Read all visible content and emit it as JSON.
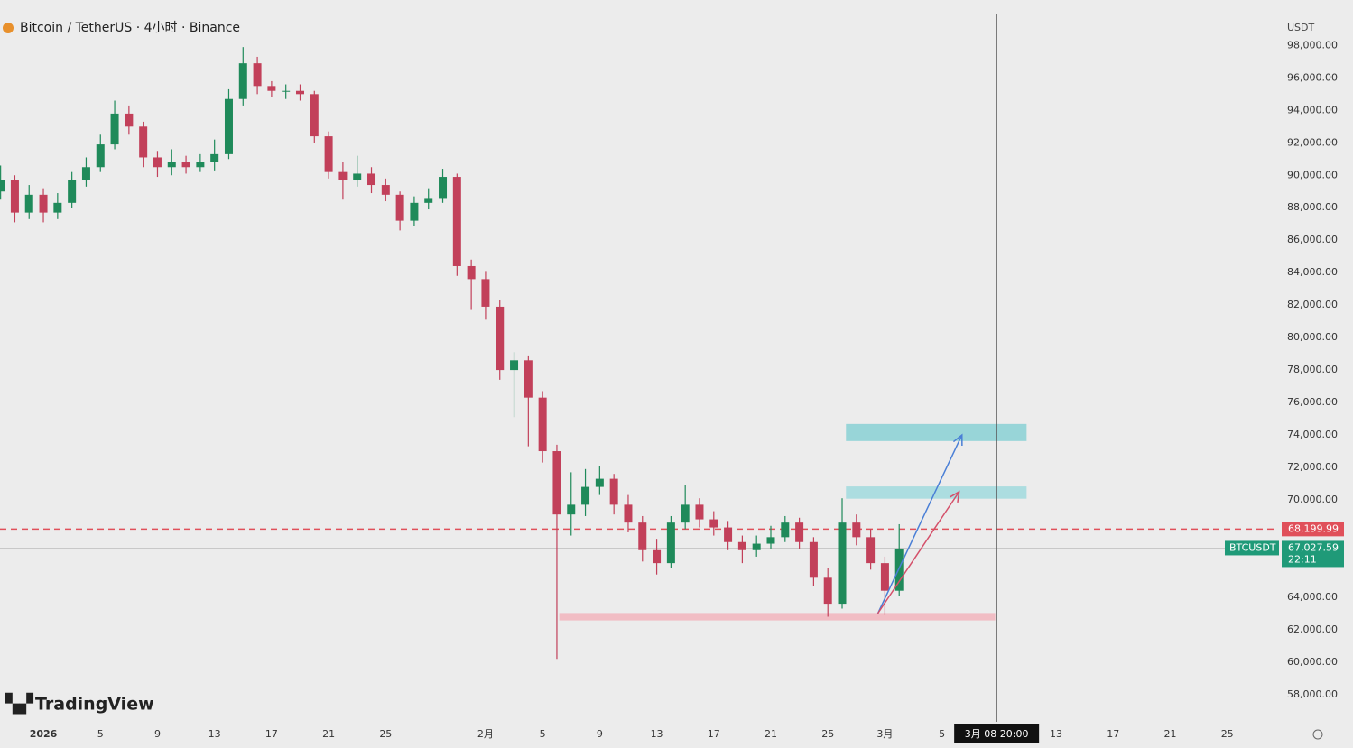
{
  "chart_data": {
    "type": "candlestick",
    "title": "Bitcoin / TetherUS · 4小时 · Binance",
    "currency": "USDT",
    "brand": "TradingView",
    "up_color": "#1f8a5a",
    "down_color": "#c2405a",
    "x": [
      -3,
      -2,
      -1,
      0,
      1,
      2,
      3,
      4,
      5,
      6,
      7,
      8,
      9,
      10,
      11,
      12,
      13,
      14,
      15,
      16,
      17,
      18,
      19,
      20,
      21,
      22,
      23,
      24,
      25,
      26,
      27,
      28,
      29,
      30,
      31,
      32,
      33,
      34,
      35,
      36,
      37,
      38,
      39,
      40,
      41,
      42,
      43,
      44,
      45,
      46,
      47,
      48,
      49,
      50,
      51,
      52,
      53,
      54,
      55,
      56,
      57,
      58,
      59,
      60
    ],
    "open": [
      89000,
      89700,
      87700,
      88800,
      87700,
      88300,
      89700,
      90500,
      91900,
      93800,
      93000,
      91100,
      90500,
      90800,
      90500,
      90800,
      91300,
      94700,
      96900,
      95500,
      95200,
      95200,
      95000,
      92400,
      90200,
      89700,
      90100,
      89400,
      88800,
      87200,
      88300,
      88600,
      89900,
      84400,
      83600,
      81900,
      78000,
      78600,
      76300,
      73000,
      69100,
      69700,
      70800,
      71300,
      69700,
      68600,
      66900,
      66100,
      68600,
      69700,
      68800,
      68300,
      67400,
      66900,
      67300,
      67700,
      68600,
      67400,
      65200,
      63600,
      68600,
      67700,
      66100,
      64400
    ],
    "high": [
      90600,
      90000,
      89400,
      89200,
      88900,
      90200,
      91100,
      92500,
      94600,
      94300,
      93300,
      91500,
      91600,
      91200,
      91300,
      92200,
      95300,
      97900,
      97300,
      95800,
      95600,
      95600,
      95200,
      92700,
      90800,
      91200,
      90500,
      89800,
      89000,
      88700,
      89200,
      90400,
      90100,
      84800,
      84100,
      82300,
      79100,
      78900,
      76700,
      73400,
      71700,
      71900,
      72100,
      71600,
      70300,
      69000,
      67600,
      69000,
      70900,
      70100,
      69300,
      68700,
      67800,
      67800,
      68400,
      69000,
      68900,
      67700,
      65800,
      70100,
      69100,
      68200,
      66500,
      68500
    ],
    "low": [
      88500,
      87100,
      87300,
      87100,
      87300,
      88000,
      89300,
      90200,
      91600,
      92500,
      90500,
      89900,
      90000,
      90100,
      90200,
      90300,
      91000,
      94300,
      95000,
      94800,
      94700,
      94600,
      92000,
      89800,
      88500,
      89300,
      88900,
      88400,
      86600,
      86900,
      87900,
      88300,
      83800,
      81700,
      81100,
      77400,
      75100,
      73300,
      72300,
      60200,
      67800,
      69000,
      70300,
      69100,
      68000,
      66200,
      65400,
      65800,
      68200,
      68300,
      67800,
      66900,
      66100,
      66500,
      67000,
      67400,
      67000,
      64700,
      62800,
      63300,
      67200,
      65700,
      62900,
      64100
    ],
    "close": [
      89700,
      87700,
      88800,
      87700,
      88300,
      89700,
      90500,
      91900,
      93800,
      93000,
      91100,
      90500,
      90800,
      90500,
      90800,
      91300,
      94700,
      96900,
      95500,
      95200,
      95200,
      95000,
      92400,
      90200,
      89700,
      90100,
      89400,
      88800,
      87200,
      88300,
      88600,
      89900,
      84400,
      83600,
      81900,
      78000,
      78600,
      76300,
      73000,
      69100,
      69700,
      70800,
      71300,
      69700,
      68600,
      66900,
      66100,
      68600,
      69700,
      68800,
      68300,
      67400,
      66900,
      67300,
      67700,
      68600,
      67400,
      65200,
      63600,
      68600,
      67700,
      66100,
      64400,
      67000
    ],
    "xlim": [
      -3.04,
      86.5
    ],
    "ylim": [
      56600,
      100800
    ],
    "xticks": [
      {
        "value": 0,
        "label": "2026"
      },
      {
        "value": 4,
        "label": "5"
      },
      {
        "value": 8,
        "label": "9"
      },
      {
        "value": 12,
        "label": "13"
      },
      {
        "value": 16,
        "label": "17"
      },
      {
        "value": 20,
        "label": "21"
      },
      {
        "value": 24,
        "label": "25"
      },
      {
        "value": 31,
        "label": "2月"
      },
      {
        "value": 35,
        "label": "5"
      },
      {
        "value": 39,
        "label": "9"
      },
      {
        "value": 43,
        "label": "13"
      },
      {
        "value": 47,
        "label": "17"
      },
      {
        "value": 51,
        "label": "21"
      },
      {
        "value": 55,
        "label": "25"
      },
      {
        "value": 59,
        "label": "3月"
      },
      {
        "value": 63,
        "label": "5"
      },
      {
        "value": 71,
        "label": "13"
      },
      {
        "value": 75,
        "label": "17"
      },
      {
        "value": 79,
        "label": "21"
      },
      {
        "value": 83,
        "label": "25"
      }
    ],
    "yticks": [
      {
        "value": 98000,
        "label": "98,000.00"
      },
      {
        "value": 96000,
        "label": "96,000.00"
      },
      {
        "value": 94000,
        "label": "94,000.00"
      },
      {
        "value": 92000,
        "label": "92,000.00"
      },
      {
        "value": 90000,
        "label": "90,000.00"
      },
      {
        "value": 88000,
        "label": "88,000.00"
      },
      {
        "value": 86000,
        "label": "86,000.00"
      },
      {
        "value": 84000,
        "label": "84,000.00"
      },
      {
        "value": 82000,
        "label": "82,000.00"
      },
      {
        "value": 80000,
        "label": "80,000.00"
      },
      {
        "value": 78000,
        "label": "78,000.00"
      },
      {
        "value": 76000,
        "label": "76,000.00"
      },
      {
        "value": 74000,
        "label": "74,000.00"
      },
      {
        "value": 72000,
        "label": "72,000.00"
      },
      {
        "value": 70000,
        "label": "70,000.00"
      },
      {
        "value": 64000,
        "label": "64,000.00"
      },
      {
        "value": 62000,
        "label": "62,000.00"
      },
      {
        "value": 60000,
        "label": "60,000.00"
      },
      {
        "value": 58000,
        "label": "58,000.00"
      }
    ],
    "price_lines": [
      {
        "value": 68199.99,
        "label": "68,199.99",
        "color": "#e0505a",
        "dashed": true
      },
      {
        "value": 67027.59,
        "label": "67,027.59",
        "symbol": "BTCUSDT",
        "countdown": "22:11",
        "color": "#1f9a78",
        "dashed": false
      }
    ],
    "crosshair": {
      "x": 66.83,
      "label": "3月 08   20:00"
    },
    "zones": [
      {
        "x0": 56.3,
        "x1": 68.9,
        "top": 74650,
        "bottom": 73650,
        "color": "#8fd3d6"
      },
      {
        "x0": 56.3,
        "x1": 68.9,
        "top": 70800,
        "bottom": 70100,
        "color": "#a6dcdf"
      },
      {
        "x0": 36.2,
        "x1": 66.7,
        "top": 63000,
        "bottom": 62600,
        "color": "#f2b9c0"
      }
    ],
    "arrows": [
      {
        "x0": 58.5,
        "y0": 63000,
        "x1": 64.4,
        "y1": 74000,
        "color": "#4a7fd6"
      },
      {
        "x0": 58.5,
        "y0": 63000,
        "x1": 64.2,
        "y1": 70500,
        "color": "#d4506a"
      }
    ]
  }
}
